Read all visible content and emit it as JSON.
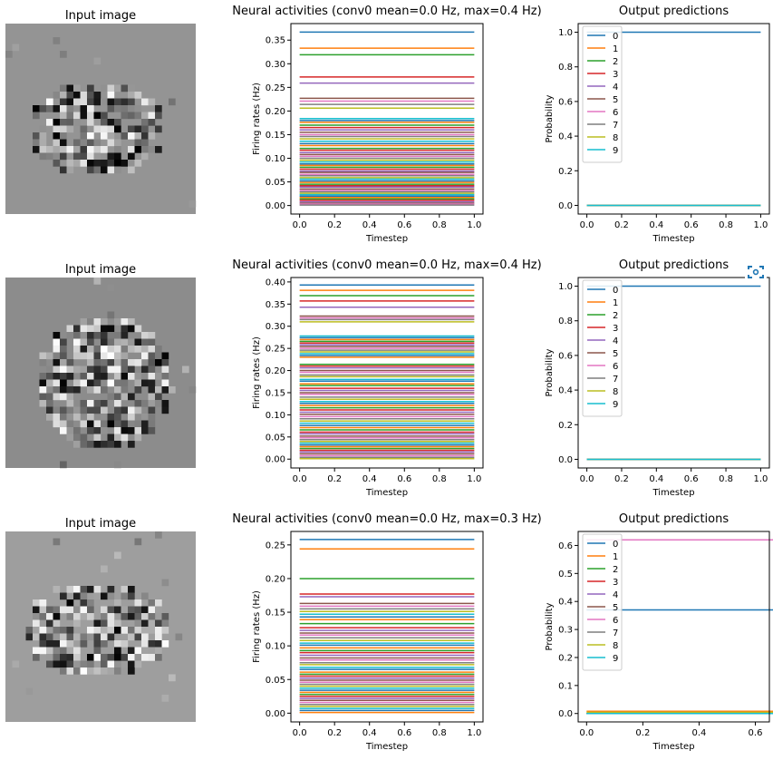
{
  "colors": {
    "tab": [
      "#1f77b4",
      "#ff7f0e",
      "#2ca02c",
      "#d62728",
      "#9467bd",
      "#8c564b",
      "#e377c2",
      "#7f7f7f",
      "#bcbd22",
      "#17becf"
    ],
    "axis": "#000000",
    "legend_border": "#cccccc",
    "icon": "#1f77b4"
  },
  "icons": {
    "overlay": "screenshot-capture-icon"
  },
  "rows": [
    {
      "input_title": "Input image",
      "activity_title": "Neural activities (conv0 mean=0.0 Hz, max=0.4 Hz)",
      "activity_ylabel": "Firing rates (Hz)",
      "activity_xlabel": "Timestep",
      "output_title": "Output predictions",
      "output_ylabel": "Probability",
      "output_xlabel": "Timestep",
      "legend": [
        "0",
        "1",
        "2",
        "3",
        "4",
        "5",
        "6",
        "7",
        "8",
        "9"
      ]
    },
    {
      "input_title": "Input image",
      "activity_title": "Neural activities (conv0 mean=0.0 Hz, max=0.4 Hz)",
      "activity_ylabel": "Firing rates (Hz)",
      "activity_xlabel": "Timestep",
      "output_title": "Output predictions",
      "output_ylabel": "Probability",
      "output_xlabel": "Timestep",
      "legend": [
        "0",
        "1",
        "2",
        "3",
        "4",
        "5",
        "6",
        "7",
        "8",
        "9"
      ]
    },
    {
      "input_title": "Input image",
      "activity_title": "Neural activities (conv0 mean=0.0 Hz, max=0.3 Hz)",
      "activity_ylabel": "Firing rates (Hz)",
      "activity_xlabel": "Timestep",
      "output_title": "Output predictions",
      "output_ylabel": "Probability",
      "output_xlabel": "Timestep",
      "legend": [
        "0",
        "1",
        "2",
        "3",
        "4",
        "5",
        "6",
        "7",
        "8",
        "9"
      ]
    }
  ],
  "chart_data": [
    {
      "type": "heatmap",
      "title": "Input image",
      "grid": [
        28,
        28
      ],
      "background_gray": 0.58,
      "blob": {
        "center": [
          15,
          13
        ],
        "radii": [
          7,
          10
        ]
      }
    },
    {
      "type": "line",
      "title": "Neural activities (conv0 mean=0.0 Hz, max=0.4 Hz)",
      "xlabel": "Timestep",
      "ylabel": "Firing rates (Hz)",
      "x": [
        0,
        1
      ],
      "xlim": [
        -0.05,
        1.05
      ],
      "ylim": [
        -0.018,
        0.385
      ],
      "xticks": [
        "0.0",
        "0.2",
        "0.4",
        "0.6",
        "0.8",
        "1.0"
      ],
      "yticks": [
        "0.00",
        "0.05",
        "0.10",
        "0.15",
        "0.20",
        "0.25",
        "0.30",
        "0.35"
      ],
      "levels": [
        0.367,
        0.333,
        0.319,
        0.272,
        0.259,
        0.227,
        0.221,
        0.214,
        0.206,
        0.184,
        0.18,
        0.176,
        0.17,
        0.165,
        0.16,
        0.155,
        0.15,
        0.146,
        0.141,
        0.136,
        0.131,
        0.127,
        0.121,
        0.117,
        0.112,
        0.108,
        0.104,
        0.1,
        0.096,
        0.092,
        0.088,
        0.085,
        0.081,
        0.077,
        0.073,
        0.07,
        0.066,
        0.063,
        0.059,
        0.056,
        0.052,
        0.049,
        0.045,
        0.042,
        0.039,
        0.035,
        0.032,
        0.029,
        0.026,
        0.023,
        0.02,
        0.017,
        0.014,
        0.011,
        0.008,
        0.005,
        0.003,
        0.001
      ]
    },
    {
      "type": "line",
      "title": "Output predictions",
      "xlabel": "Timestep",
      "ylabel": "Probability",
      "x": [
        0,
        1
      ],
      "xlim": [
        -0.05,
        1.05
      ],
      "ylim": [
        -0.05,
        1.05
      ],
      "xticks": [
        "0.0",
        "0.2",
        "0.4",
        "0.6",
        "0.8",
        "1.0"
      ],
      "yticks": [
        "0.0",
        "0.2",
        "0.4",
        "0.6",
        "0.8",
        "1.0"
      ],
      "series": [
        {
          "name": "0",
          "value": 1.0
        },
        {
          "name": "1",
          "value": 0.0
        },
        {
          "name": "2",
          "value": 0.0
        },
        {
          "name": "3",
          "value": 0.0
        },
        {
          "name": "4",
          "value": 0.0
        },
        {
          "name": "5",
          "value": 0.0
        },
        {
          "name": "6",
          "value": 0.0
        },
        {
          "name": "7",
          "value": 0.0
        },
        {
          "name": "8",
          "value": 0.0
        },
        {
          "name": "9",
          "value": 0.0
        }
      ]
    },
    {
      "type": "heatmap",
      "title": "Input image",
      "grid": [
        28,
        28
      ],
      "background_gray": 0.55,
      "blob": {
        "center": [
          15,
          14
        ],
        "radii": [
          10,
          10
        ]
      }
    },
    {
      "type": "line",
      "title": "Neural activities (conv0 mean=0.0 Hz, max=0.4 Hz)",
      "xlabel": "Timestep",
      "ylabel": "Firing rates (Hz)",
      "x": [
        0,
        1
      ],
      "xlim": [
        -0.05,
        1.05
      ],
      "ylim": [
        -0.02,
        0.41
      ],
      "xticks": [
        "0.0",
        "0.2",
        "0.4",
        "0.6",
        "0.8",
        "1.0"
      ],
      "yticks": [
        "0.00",
        "0.05",
        "0.10",
        "0.15",
        "0.20",
        "0.25",
        "0.30",
        "0.35",
        "0.40"
      ],
      "levels": [
        0.393,
        0.381,
        0.369,
        0.357,
        0.343,
        0.323,
        0.319,
        0.315,
        0.31,
        0.278,
        0.274,
        0.27,
        0.266,
        0.262,
        0.258,
        0.254,
        0.25,
        0.246,
        0.242,
        0.238,
        0.234,
        0.23,
        0.214,
        0.21,
        0.206,
        0.2,
        0.196,
        0.19,
        0.186,
        0.18,
        0.176,
        0.17,
        0.166,
        0.16,
        0.155,
        0.15,
        0.146,
        0.14,
        0.135,
        0.13,
        0.126,
        0.121,
        0.116,
        0.111,
        0.106,
        0.101,
        0.096,
        0.091,
        0.086,
        0.081,
        0.076,
        0.071,
        0.066,
        0.061,
        0.057,
        0.052,
        0.048,
        0.044,
        0.04,
        0.036,
        0.032,
        0.028,
        0.024,
        0.02,
        0.016,
        0.012,
        0.008,
        0.004,
        0.001
      ]
    },
    {
      "type": "line",
      "title": "Output predictions",
      "xlabel": "Timestep",
      "ylabel": "Probability",
      "x": [
        0,
        1
      ],
      "xlim": [
        -0.05,
        1.05
      ],
      "ylim": [
        -0.05,
        1.05
      ],
      "xticks": [
        "0.0",
        "0.2",
        "0.4",
        "0.6",
        "0.8",
        "1.0"
      ],
      "yticks": [
        "0.0",
        "0.2",
        "0.4",
        "0.6",
        "0.8",
        "1.0"
      ],
      "series": [
        {
          "name": "0",
          "value": 1.0
        },
        {
          "name": "1",
          "value": 0.0
        },
        {
          "name": "2",
          "value": 0.0
        },
        {
          "name": "3",
          "value": 0.0
        },
        {
          "name": "4",
          "value": 0.0
        },
        {
          "name": "5",
          "value": 0.0
        },
        {
          "name": "6",
          "value": 0.0
        },
        {
          "name": "7",
          "value": 0.0
        },
        {
          "name": "8",
          "value": 0.0
        },
        {
          "name": "9",
          "value": 0.0
        }
      ]
    },
    {
      "type": "heatmap",
      "title": "Input image",
      "grid": [
        28,
        28
      ],
      "background_gray": 0.62,
      "blob": {
        "center": [
          14,
          13
        ],
        "radii": [
          7,
          11
        ]
      }
    },
    {
      "type": "line",
      "title": "Neural activities (conv0 mean=0.0 Hz, max=0.3 Hz)",
      "xlabel": "Timestep",
      "ylabel": "Firing rates (Hz)",
      "x": [
        0,
        1
      ],
      "xlim": [
        -0.05,
        1.05
      ],
      "ylim": [
        -0.013,
        0.27
      ],
      "xticks": [
        "0.0",
        "0.2",
        "0.4",
        "0.6",
        "0.8",
        "1.0"
      ],
      "yticks": [
        "0.00",
        "0.05",
        "0.10",
        "0.15",
        "0.20",
        "0.25"
      ],
      "levels": [
        0.258,
        0.244,
        0.2,
        0.177,
        0.173,
        0.163,
        0.159,
        0.155,
        0.151,
        0.147,
        0.143,
        0.139,
        0.133,
        0.127,
        0.123,
        0.119,
        0.116,
        0.112,
        0.108,
        0.104,
        0.101,
        0.097,
        0.093,
        0.09,
        0.086,
        0.082,
        0.079,
        0.075,
        0.072,
        0.068,
        0.065,
        0.061,
        0.058,
        0.055,
        0.052,
        0.049,
        0.046,
        0.043,
        0.04,
        0.037,
        0.034,
        0.031,
        0.028,
        0.025,
        0.022,
        0.019,
        0.016,
        0.013,
        0.01,
        0.007,
        0.004,
        0.001
      ]
    },
    {
      "type": "line",
      "title": "Output predictions",
      "xlabel": "Timestep",
      "ylabel": "Probability",
      "x": [
        0,
        1
      ],
      "xlim": [
        -0.03,
        0.65
      ],
      "ylim": [
        -0.03,
        0.65
      ],
      "xticks": [
        "0.0",
        "0.2",
        "0.4",
        "0.6",
        "0.8",
        "1.0"
      ],
      "yticks": [
        "0.0",
        "0.1",
        "0.2",
        "0.3",
        "0.4",
        "0.5",
        "0.6"
      ],
      "series": [
        {
          "name": "0",
          "value": 0.37
        },
        {
          "name": "1",
          "value": 0.008
        },
        {
          "name": "2",
          "value": 0.0
        },
        {
          "name": "3",
          "value": 0.0
        },
        {
          "name": "4",
          "value": 0.0
        },
        {
          "name": "5",
          "value": 0.0
        },
        {
          "name": "6",
          "value": 0.62
        },
        {
          "name": "7",
          "value": 0.0
        },
        {
          "name": "8",
          "value": 0.004
        },
        {
          "name": "9",
          "value": 0.0
        }
      ]
    }
  ]
}
